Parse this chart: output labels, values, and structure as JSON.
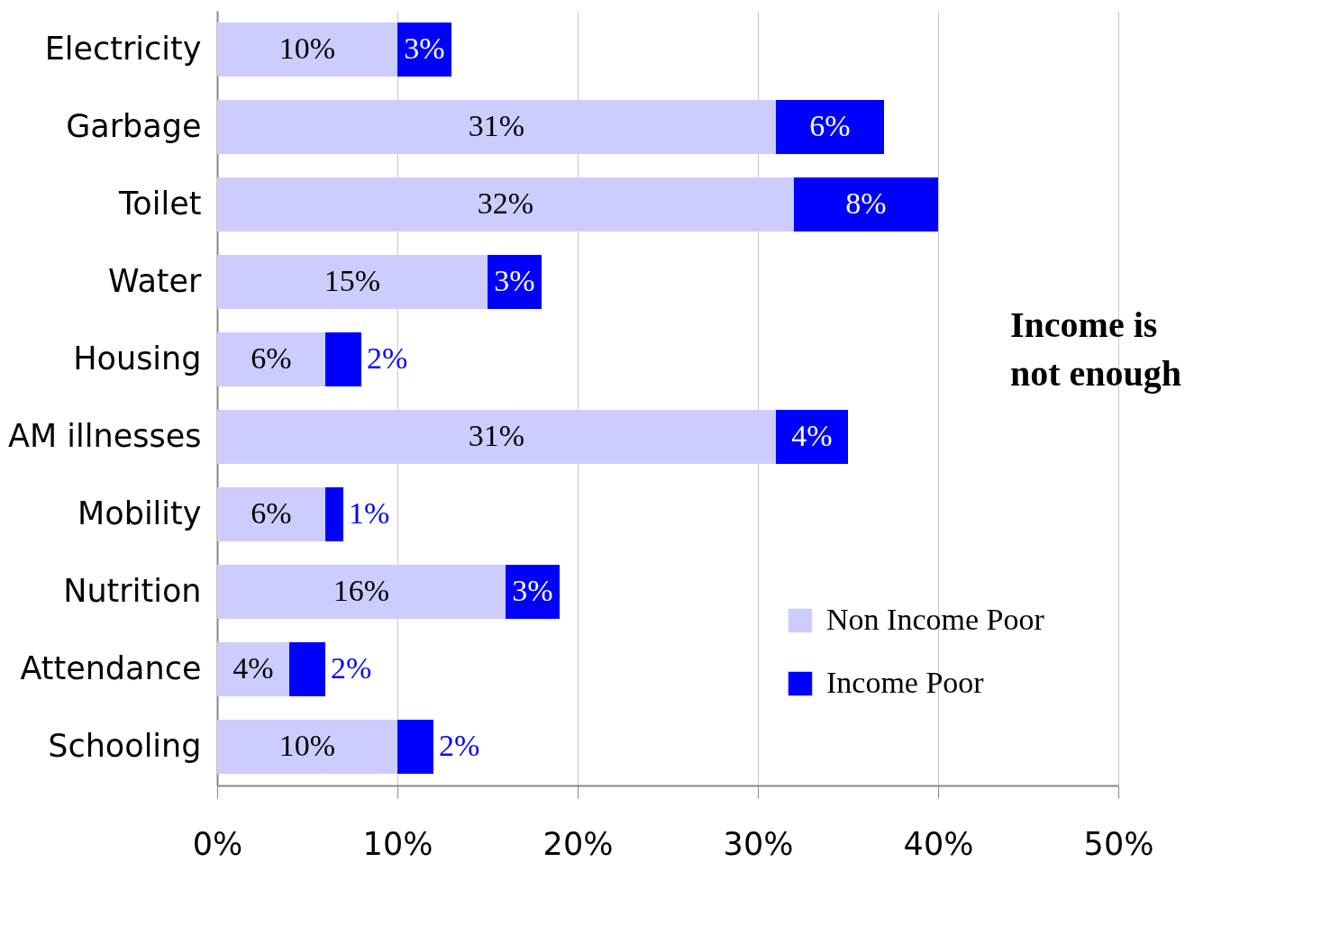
{
  "chart_data": {
    "type": "bar",
    "orientation": "horizontal",
    "stacked": true,
    "categories": [
      "Electricity",
      "Garbage",
      "Toilet",
      "Water",
      "Housing",
      "AM illnesses",
      "Mobility",
      "Nutrition",
      "Attendance",
      "Schooling"
    ],
    "series": [
      {
        "name": "Non Income Poor",
        "color": "#ccccff",
        "values": [
          10,
          31,
          32,
          15,
          6,
          31,
          6,
          16,
          4,
          10
        ],
        "value_labels": [
          "10%",
          "31%",
          "32%",
          "15%",
          "6%",
          "31%",
          "6%",
          "16%",
          "4%",
          "10%"
        ]
      },
      {
        "name": "Income Poor",
        "color": "#0000ff",
        "values": [
          3,
          6,
          8,
          3,
          2,
          4,
          1,
          3,
          2,
          2
        ],
        "value_labels": [
          "3%",
          "6%",
          "8%",
          "3%",
          "2%",
          "4%",
          "1%",
          "3%",
          "2%",
          "2%"
        ]
      }
    ],
    "xlim": [
      0,
      50
    ],
    "xticks": [
      {
        "value": 0,
        "label": "0%"
      },
      {
        "value": 10,
        "label": "10%"
      },
      {
        "value": 20,
        "label": "20%"
      },
      {
        "value": 30,
        "label": "30%"
      },
      {
        "value": 40,
        "label": "40%"
      },
      {
        "value": 50,
        "label": "50%"
      }
    ],
    "grid": "x",
    "legend": "bottom right",
    "annotations": [
      "Income is\nnot enough"
    ]
  }
}
